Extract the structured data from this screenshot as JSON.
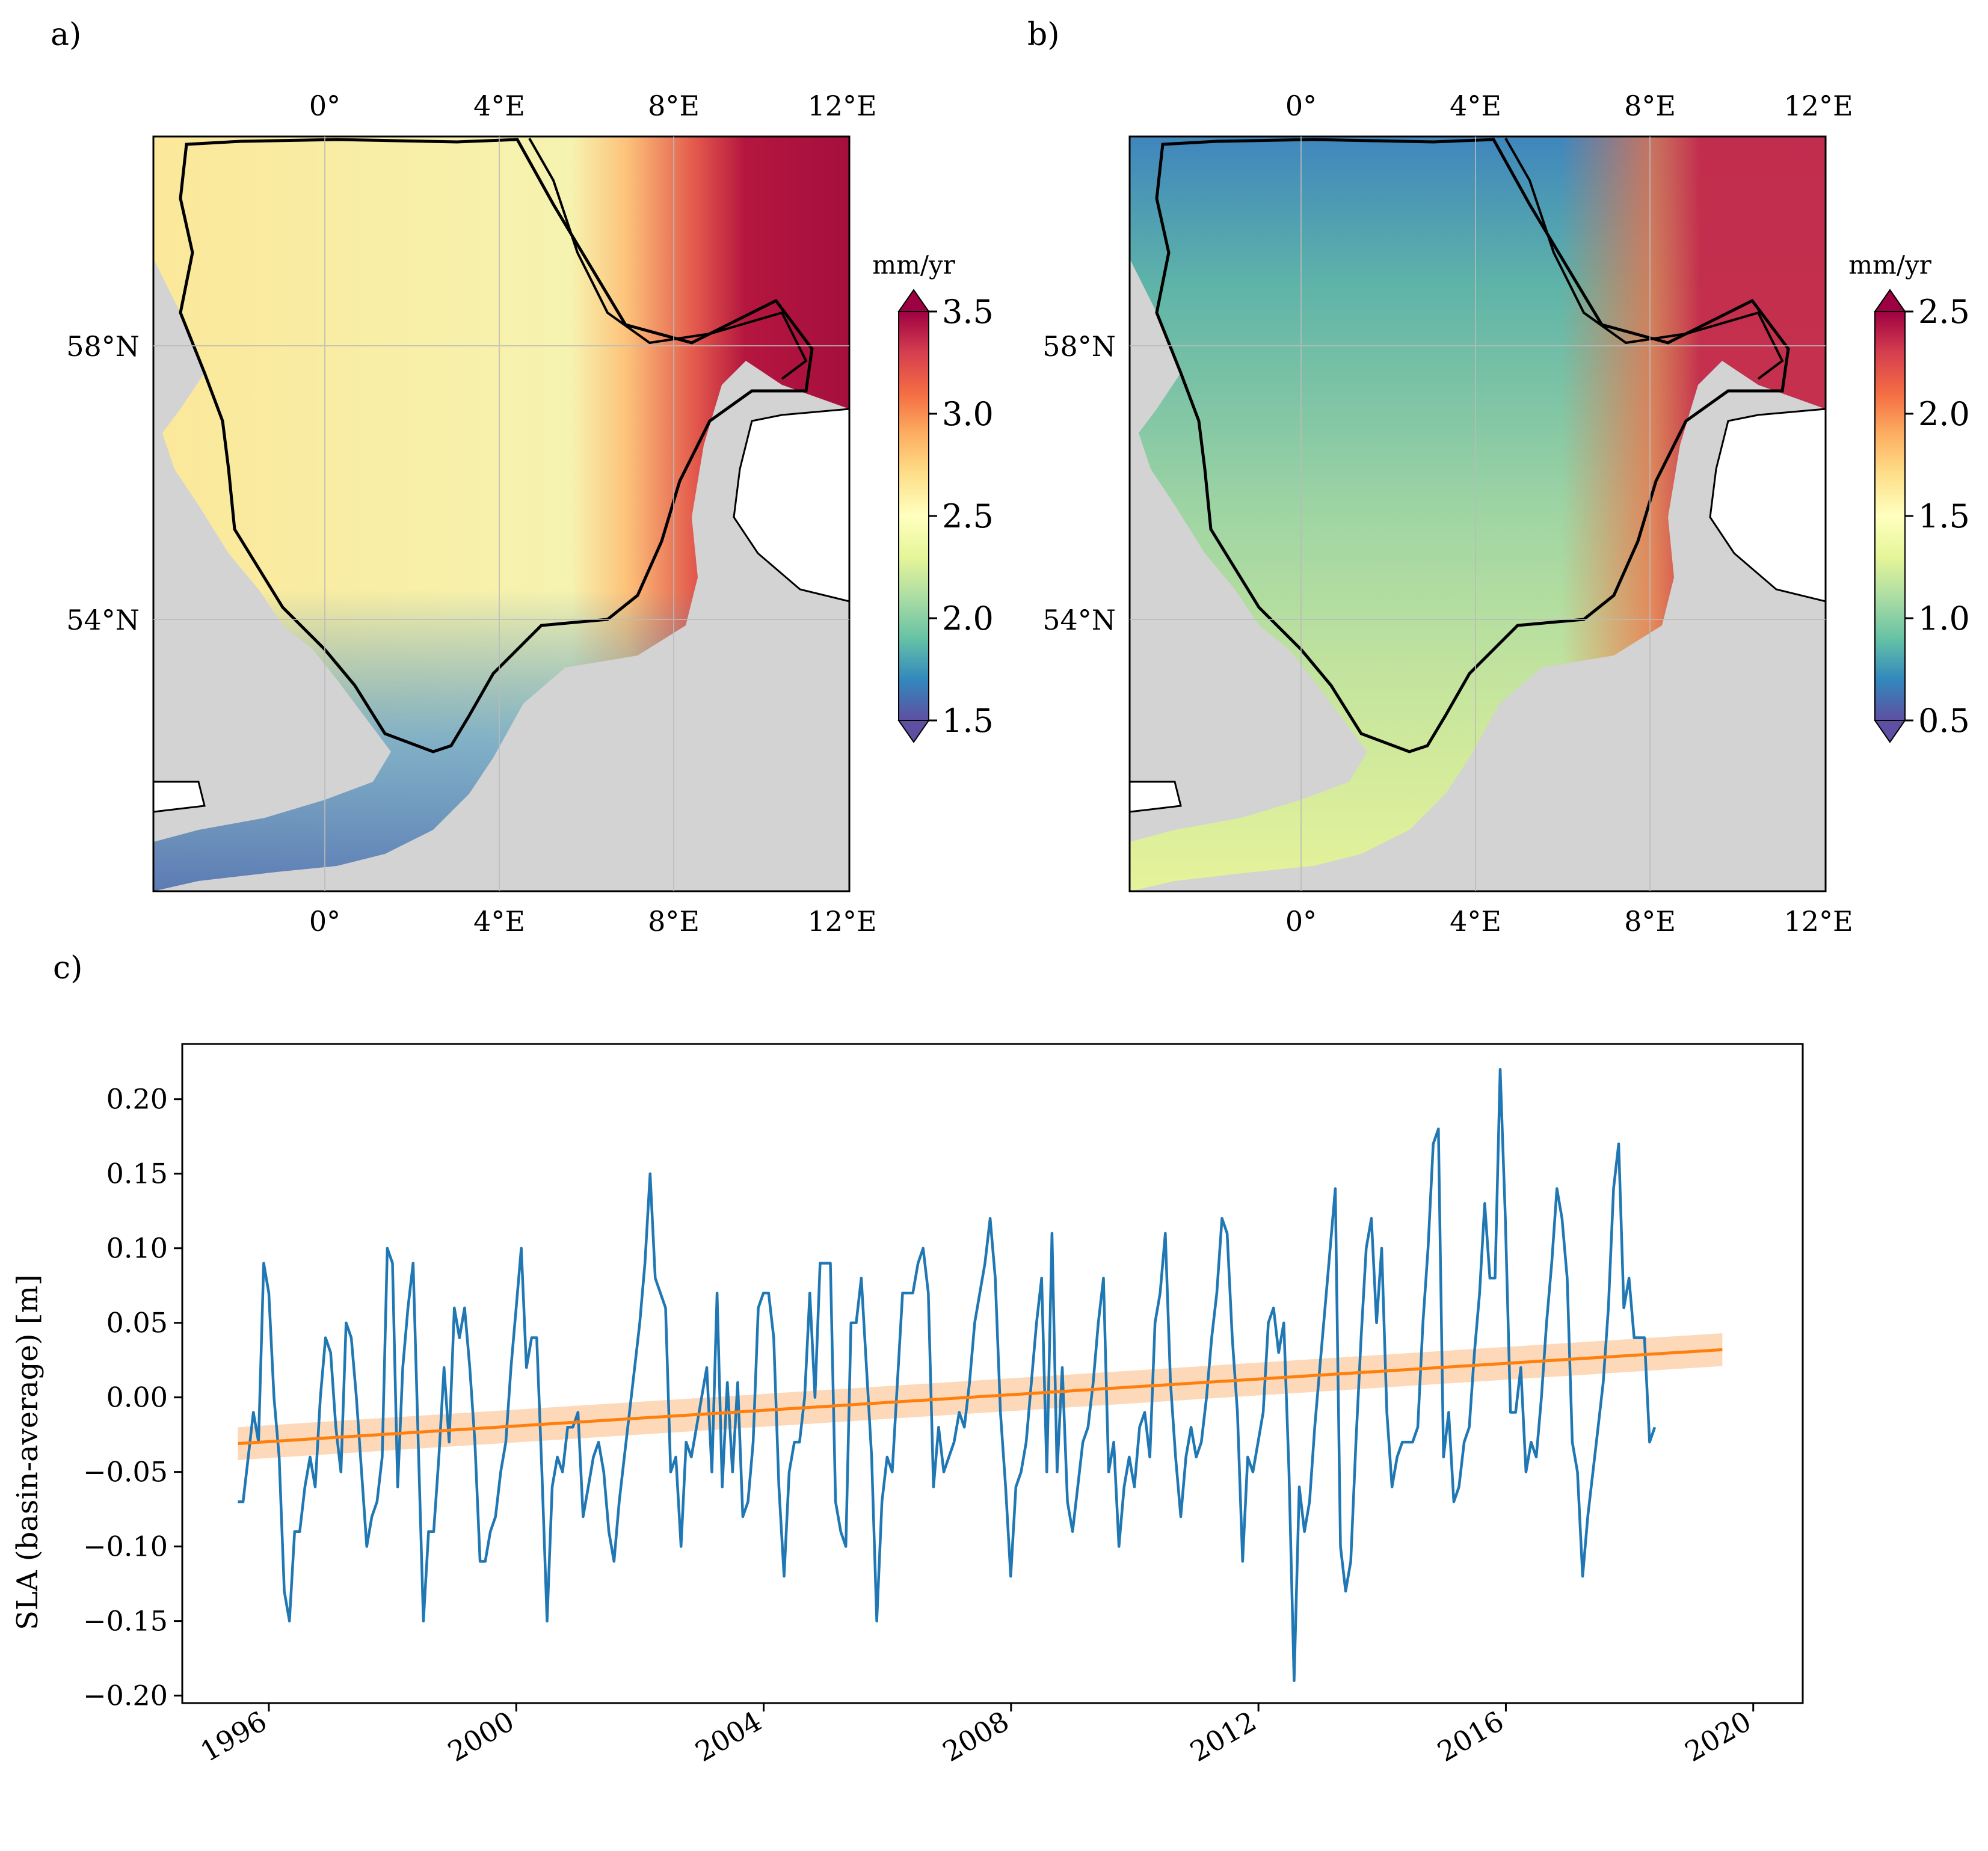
{
  "panels": {
    "a": {
      "label": "a)",
      "top_ticks": [
        "0°",
        "4°E",
        "8°E",
        "12°E"
      ],
      "bottom_ticks": [
        "0°",
        "4°E",
        "8°E",
        "12°E"
      ],
      "left_ticks": [
        "58°N",
        "54°N"
      ],
      "colorbar": {
        "unit": "mm/yr",
        "ticks": [
          "3.5",
          "3.0",
          "2.5",
          "2.0",
          "1.5"
        ]
      }
    },
    "b": {
      "label": "b)",
      "top_ticks": [
        "0°",
        "4°E",
        "8°E",
        "12°E"
      ],
      "bottom_ticks": [
        "0°",
        "4°E",
        "8°E",
        "12°E"
      ],
      "left_ticks": [
        "58°N",
        "54°N"
      ],
      "colorbar": {
        "unit": "mm/yr",
        "ticks": [
          "2.5",
          "2.0",
          "1.5",
          "1.0",
          "0.5"
        ]
      }
    },
    "c": {
      "label": "c)"
    }
  },
  "colors": {
    "land": "#d3d3d3",
    "series": "#1f77b4",
    "trend": "#ff7f0e",
    "trend_band": "#fdd0a8",
    "spectral": [
      "#5e4fa2",
      "#3288bd",
      "#66c2a5",
      "#abdda4",
      "#e6f598",
      "#ffffbf",
      "#fee08b",
      "#fdae61",
      "#f46d43",
      "#d53e4f",
      "#9e0142"
    ]
  },
  "chart_data": {
    "type": "line",
    "ylabel": "SLA (basin-average) [m]",
    "xlabel": "",
    "xlim": [
      1994.6,
      2020.8
    ],
    "ylim": [
      -0.205,
      0.237
    ],
    "x_ticks": [
      "1996",
      "2000",
      "2004",
      "2008",
      "2012",
      "2016",
      "2020"
    ],
    "y_ticks": [
      "0.20",
      "0.15",
      "0.10",
      "0.05",
      "0.00",
      "−0.05",
      "−0.10",
      "−0.15",
      "−0.20"
    ],
    "x_start": 1995.5,
    "x_step": 0.0833,
    "series": [
      {
        "values": [
          -0.07,
          -0.07,
          -0.04,
          -0.01,
          -0.03,
          0.09,
          0.07,
          0.0,
          -0.04,
          -0.13,
          -0.15,
          -0.09,
          -0.09,
          -0.06,
          -0.04,
          -0.06,
          0.0,
          0.04,
          0.03,
          -0.02,
          -0.05,
          0.05,
          0.04,
          0.0,
          -0.05,
          -0.1,
          -0.08,
          -0.07,
          -0.04,
          0.1,
          0.09,
          -0.06,
          0.02,
          0.06,
          0.09,
          -0.03,
          -0.15,
          -0.09,
          -0.09,
          -0.04,
          0.02,
          -0.03,
          0.06,
          0.04,
          0.06,
          0.02,
          -0.03,
          -0.11,
          -0.11,
          -0.09,
          -0.08,
          -0.05,
          -0.03,
          0.02,
          0.06,
          0.1,
          0.02,
          0.04,
          0.04,
          -0.05,
          -0.15,
          -0.06,
          -0.04,
          -0.05,
          -0.02,
          -0.02,
          -0.01,
          -0.08,
          -0.06,
          -0.04,
          -0.03,
          -0.05,
          -0.09,
          -0.11,
          -0.07,
          -0.04,
          -0.01,
          0.02,
          0.05,
          0.09,
          0.15,
          0.08,
          0.07,
          0.06,
          -0.05,
          -0.04,
          -0.1,
          -0.03,
          -0.04,
          -0.02,
          0.0,
          0.02,
          -0.05,
          0.07,
          -0.06,
          0.01,
          -0.05,
          0.01,
          -0.08,
          -0.07,
          -0.03,
          0.06,
          0.07,
          0.07,
          0.04,
          -0.06,
          -0.12,
          -0.05,
          -0.03,
          -0.03,
          0.0,
          0.07,
          0.0,
          0.09,
          0.09,
          0.09,
          -0.07,
          -0.09,
          -0.1,
          0.05,
          0.05,
          0.08,
          0.02,
          -0.04,
          -0.15,
          -0.07,
          -0.04,
          -0.05,
          0.01,
          0.07,
          0.07,
          0.07,
          0.09,
          0.1,
          0.07,
          -0.06,
          -0.02,
          -0.05,
          -0.04,
          -0.03,
          -0.01,
          -0.02,
          0.01,
          0.05,
          0.07,
          0.09,
          0.12,
          0.08,
          -0.01,
          -0.06,
          -0.12,
          -0.06,
          -0.05,
          -0.03,
          0.01,
          0.05,
          0.08,
          -0.05,
          0.11,
          -0.05,
          0.02,
          -0.07,
          -0.09,
          -0.06,
          -0.03,
          -0.02,
          0.01,
          0.05,
          0.08,
          -0.05,
          -0.03,
          -0.1,
          -0.06,
          -0.04,
          -0.06,
          -0.02,
          -0.01,
          -0.04,
          0.05,
          0.07,
          0.11,
          0.01,
          -0.04,
          -0.08,
          -0.04,
          -0.02,
          -0.04,
          -0.03,
          0.0,
          0.04,
          0.07,
          0.12,
          0.11,
          0.04,
          -0.01,
          -0.11,
          -0.04,
          -0.05,
          -0.03,
          -0.01,
          0.05,
          0.06,
          0.03,
          0.05,
          -0.05,
          -0.19,
          -0.06,
          -0.09,
          -0.07,
          -0.02,
          0.02,
          0.06,
          0.1,
          0.14,
          -0.1,
          -0.13,
          -0.11,
          -0.03,
          0.04,
          0.1,
          0.12,
          0.05,
          0.1,
          -0.01,
          -0.06,
          -0.04,
          -0.03,
          -0.03,
          -0.03,
          -0.02,
          0.05,
          0.1,
          0.17,
          0.18,
          -0.04,
          -0.01,
          -0.07,
          -0.06,
          -0.03,
          -0.02,
          0.03,
          0.07,
          0.13,
          0.08,
          0.08,
          0.22,
          0.12,
          -0.01,
          -0.01,
          0.02,
          -0.05,
          -0.03,
          -0.04,
          0.0,
          0.05,
          0.09,
          0.14,
          0.12,
          0.08,
          -0.03,
          -0.05,
          -0.12,
          -0.08,
          -0.05,
          -0.02,
          0.01,
          0.06,
          0.14,
          0.17,
          0.06,
          0.08,
          0.04,
          0.04,
          0.04,
          -0.03,
          -0.02
        ]
      },
      {
        "name": "",
        "x": [
          1995.5,
          2019.5
        ],
        "values": [
          -0.031,
          0.032
        ],
        "band": 0.011
      }
    ]
  }
}
